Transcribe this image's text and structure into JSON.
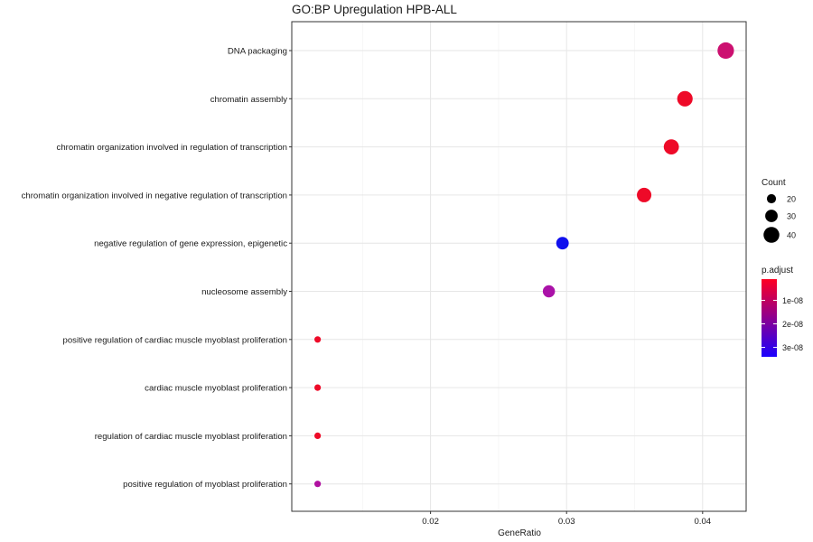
{
  "chart_data": {
    "type": "scatter",
    "title": "GO:BP Upregulation HPB-ALL",
    "xlabel": "GeneRatio",
    "ylabel": "",
    "xlim": [
      0.0098,
      0.0432
    ],
    "xticks": [
      0.02,
      0.03,
      0.04
    ],
    "xtick_labels": [
      "0.02",
      "0.03",
      "0.04"
    ],
    "grid": true,
    "categories": [
      "DNA packaging",
      "chromatin assembly",
      "chromatin organization involved in regulation of transcription",
      "chromatin organization involved in negative regulation of transcription",
      "negative regulation of gene expression, epigenetic",
      "nucleosome assembly",
      "positive regulation of cardiac muscle myoblast proliferation",
      "cardiac muscle myoblast proliferation",
      "regulation of cardiac muscle myoblast proliferation",
      "positive regulation of myoblast proliferation"
    ],
    "points": [
      {
        "term": "DNA packaging",
        "gene_ratio": 0.0417,
        "count": 42,
        "p_adjust": 1.3e-08,
        "color": "#cc1070"
      },
      {
        "term": "chromatin assembly",
        "gene_ratio": 0.0387,
        "count": 39,
        "p_adjust": 2e-09,
        "color": "#ee0a28"
      },
      {
        "term": "chromatin organization involved in regulation of transcription",
        "gene_ratio": 0.0377,
        "count": 38,
        "p_adjust": 2e-09,
        "color": "#ee0a28"
      },
      {
        "term": "chromatin organization involved in negative regulation of transcription",
        "gene_ratio": 0.0357,
        "count": 36,
        "p_adjust": 2e-09,
        "color": "#ee0a28"
      },
      {
        "term": "negative regulation of gene expression, epigenetic",
        "gene_ratio": 0.0297,
        "count": 30,
        "p_adjust": 3.3e-08,
        "color": "#1010ee"
      },
      {
        "term": "nucleosome assembly",
        "gene_ratio": 0.0287,
        "count": 29,
        "p_adjust": 2.1e-08,
        "color": "#aa12a8"
      },
      {
        "term": "positive regulation of cardiac muscle myoblast proliferation",
        "gene_ratio": 0.0117,
        "count": 12,
        "p_adjust": 1e-09,
        "color": "#ee0a28"
      },
      {
        "term": "cardiac muscle myoblast proliferation",
        "gene_ratio": 0.0117,
        "count": 12,
        "p_adjust": 1e-09,
        "color": "#ee0a28"
      },
      {
        "term": "regulation of cardiac muscle myoblast proliferation",
        "gene_ratio": 0.0117,
        "count": 12,
        "p_adjust": 1e-09,
        "color": "#ee0a28"
      },
      {
        "term": "positive regulation of myoblast proliferation",
        "gene_ratio": 0.0117,
        "count": 12,
        "p_adjust": 1.8e-08,
        "color": "#b010a0"
      }
    ],
    "legend": {
      "placement": "right",
      "size": {
        "title": "Count",
        "entries": [
          {
            "label": "20",
            "value": 20
          },
          {
            "label": "30",
            "value": 30
          },
          {
            "label": "40",
            "value": 40
          }
        ]
      },
      "color": {
        "title": "p.adjust",
        "low_color": "#ff0022",
        "high_color": "#1a00ff",
        "range": [
          1e-09,
          3.4e-08
        ],
        "ticks": [
          {
            "label": "1e-08",
            "value": 1e-08
          },
          {
            "label": "2e-08",
            "value": 2e-08
          },
          {
            "label": "3e-08",
            "value": 3e-08
          }
        ]
      }
    }
  }
}
